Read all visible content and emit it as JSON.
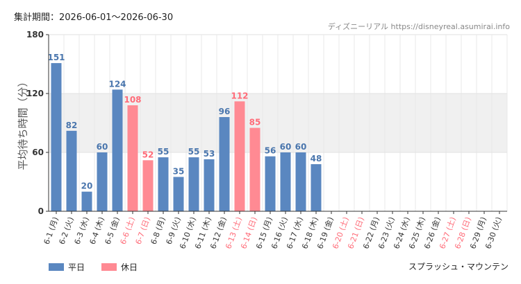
{
  "header": {
    "period_label": "集計期間：2026-06-01～2026-06-30",
    "source": "ディズニーリアル https://disneyreal.asumirai.info"
  },
  "attraction": "スプラッシュ・マウンテン",
  "legend": [
    {
      "label": "平日",
      "color": "#5a87c0"
    },
    {
      "label": "休日",
      "color": "#ff8a93"
    }
  ],
  "colors": {
    "weekday": "#5a87c0",
    "holiday": "#ff8a93",
    "weekday_text": "#4a76ad",
    "holiday_text": "#ff6b78",
    "band": "#f0f0f0"
  },
  "chart_data": {
    "type": "bar",
    "ylabel": "平均待ち時間（分）",
    "ylim": [
      0,
      180
    ],
    "yticks": [
      0,
      60,
      120,
      180
    ],
    "highlight_band": [
      60,
      120
    ],
    "categories": [
      "6-1 (月)",
      "6-2 (火)",
      "6-3 (水)",
      "6-4 (木)",
      "6-5 (金)",
      "6-6 (土)",
      "6-7 (日)",
      "6-8 (月)",
      "6-9 (火)",
      "6-10 (水)",
      "6-11 (木)",
      "6-12 (金)",
      "6-13 (土)",
      "6-14 (日)",
      "6-15 (月)",
      "6-16 (火)",
      "6-17 (水)",
      "6-18 (木)",
      "6-19 (金)",
      "6-20 (土)",
      "6-21 (日)",
      "6-22 (月)",
      "6-23 (火)",
      "6-24 (水)",
      "6-25 (木)",
      "6-26 (金)",
      "6-27 (土)",
      "6-28 (日)",
      "6-29 (月)",
      "6-30 (火)"
    ],
    "values": [
      151,
      82,
      20,
      60,
      124,
      108,
      52,
      55,
      35,
      55,
      53,
      96,
      112,
      85,
      56,
      60,
      60,
      48,
      null,
      null,
      null,
      null,
      null,
      null,
      null,
      null,
      null,
      null,
      null,
      null
    ],
    "holiday": [
      false,
      false,
      false,
      false,
      false,
      true,
      true,
      false,
      false,
      false,
      false,
      false,
      true,
      true,
      false,
      false,
      false,
      false,
      false,
      true,
      true,
      false,
      false,
      false,
      false,
      false,
      true,
      true,
      false,
      false
    ]
  }
}
